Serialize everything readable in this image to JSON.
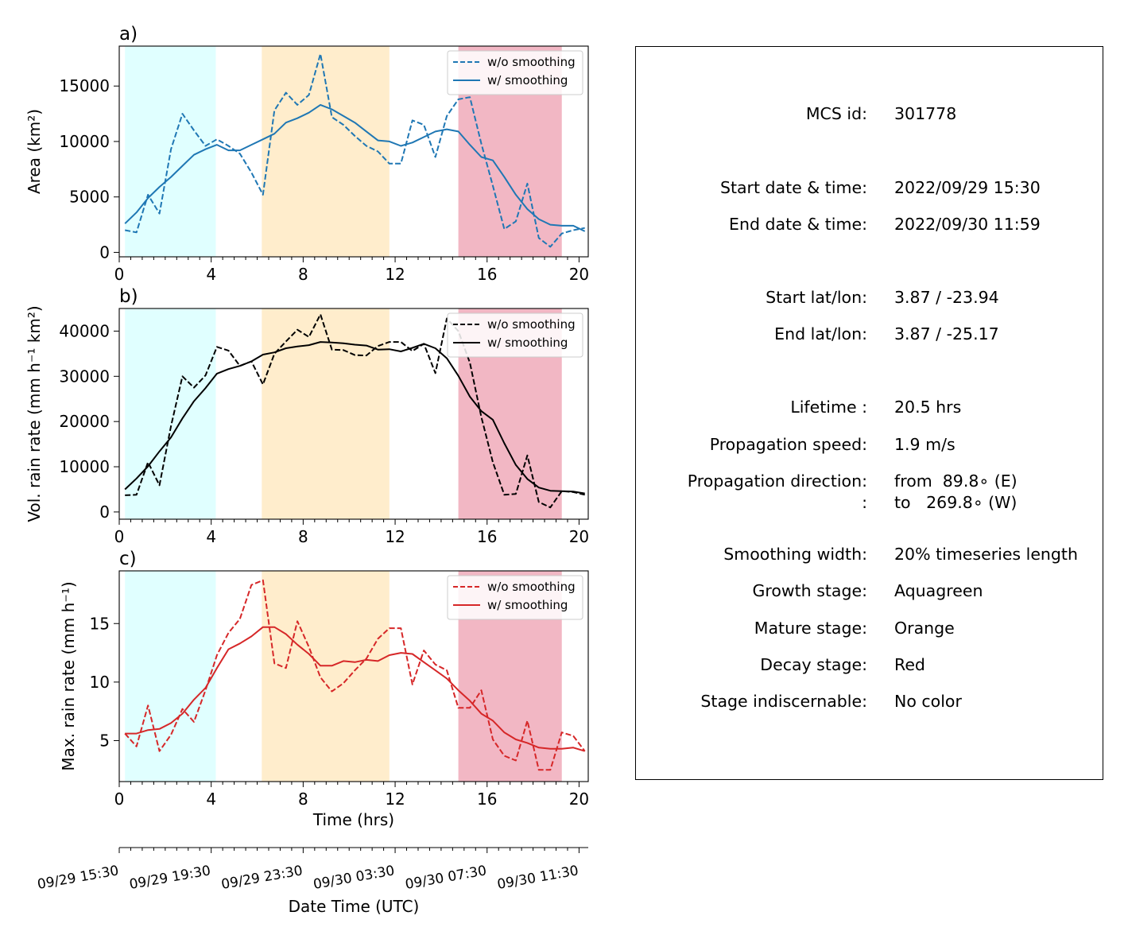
{
  "chart_data": [
    {
      "panel_label": "a)",
      "type": "line",
      "ylabel": "Area  (km²)",
      "ylim": [
        -400,
        18600
      ],
      "yticks": [
        0,
        5000,
        10000,
        15000
      ],
      "xlim": [
        0,
        20.4
      ],
      "xticks": [
        0,
        4,
        8,
        12,
        16,
        20
      ],
      "color": "#1f77b4",
      "legend_placement": "top-right",
      "stages": [
        {
          "name": "Growth stage",
          "x0": 0.25,
          "x1": 4.2,
          "color": "#e0ffff"
        },
        {
          "name": "Mature stage",
          "x0": 6.2,
          "x1": 11.75,
          "color": "#ffedcc"
        },
        {
          "name": "Decay stage",
          "x0": 14.75,
          "x1": 19.25,
          "color": "#f2b7c4"
        }
      ],
      "series": [
        {
          "name": "w/o smoothing",
          "style": "dashed",
          "x": [
            0.25,
            0.75,
            1.25,
            1.75,
            2.25,
            2.75,
            3.25,
            3.75,
            4.25,
            4.75,
            5.25,
            5.75,
            6.25,
            6.75,
            7.25,
            7.75,
            8.25,
            8.75,
            9.25,
            9.75,
            10.25,
            10.75,
            11.25,
            11.75,
            12.25,
            12.75,
            13.25,
            13.75,
            14.25,
            14.75,
            15.25,
            15.75,
            16.25,
            16.75,
            17.25,
            17.75,
            18.25,
            18.75,
            19.25,
            19.75,
            20.25
          ],
          "values": [
            2000,
            1800,
            5200,
            3500,
            9300,
            12500,
            11000,
            9600,
            10200,
            9600,
            8900,
            7200,
            5200,
            12800,
            14400,
            13300,
            14200,
            17900,
            12200,
            11500,
            10500,
            9600,
            9100,
            8000,
            8000,
            11900,
            11500,
            8600,
            12300,
            13800,
            14000,
            9800,
            6000,
            2100,
            2800,
            6200,
            1300,
            500,
            1700,
            2000,
            2200
          ]
        },
        {
          "name": "w/ smoothing",
          "style": "solid",
          "x": [
            0.25,
            0.75,
            1.25,
            1.75,
            2.25,
            2.75,
            3.25,
            3.75,
            4.25,
            4.75,
            5.25,
            5.75,
            6.25,
            6.75,
            7.25,
            7.75,
            8.25,
            8.75,
            9.25,
            9.75,
            10.25,
            10.75,
            11.25,
            11.75,
            12.25,
            12.75,
            13.25,
            13.75,
            14.25,
            14.75,
            15.25,
            15.75,
            16.25,
            16.75,
            17.25,
            17.75,
            18.25,
            18.75,
            19.25,
            19.75,
            20.25
          ],
          "values": [
            2600,
            3600,
            4900,
            5900,
            6800,
            7800,
            8800,
            9300,
            9700,
            9200,
            9200,
            9700,
            10200,
            10700,
            11700,
            12100,
            12600,
            13300,
            12900,
            12300,
            11700,
            10900,
            10100,
            10000,
            9600,
            9900,
            10400,
            10900,
            11100,
            10900,
            9700,
            8600,
            8300,
            6800,
            5200,
            3900,
            3000,
            2500,
            2400,
            2400,
            1900
          ]
        }
      ]
    },
    {
      "panel_label": "b)",
      "type": "line",
      "ylabel": "Vol. rain rate (mm h⁻¹ km²)",
      "ylim": [
        -1600,
        45000
      ],
      "yticks": [
        0,
        10000,
        20000,
        30000,
        40000
      ],
      "xlim": [
        0,
        20.4
      ],
      "xticks": [
        0,
        4,
        8,
        12,
        16,
        20
      ],
      "color": "#000000",
      "legend_placement": "top-right",
      "stages": [
        {
          "name": "Growth stage",
          "x0": 0.25,
          "x1": 4.2,
          "color": "#e0ffff"
        },
        {
          "name": "Mature stage",
          "x0": 6.2,
          "x1": 11.75,
          "color": "#ffedcc"
        },
        {
          "name": "Decay stage",
          "x0": 14.75,
          "x1": 19.25,
          "color": "#f2b7c4"
        }
      ],
      "series": [
        {
          "name": "w/o smoothing",
          "style": "dashed",
          "x": [
            0.25,
            0.75,
            1.25,
            1.75,
            2.25,
            2.75,
            3.25,
            3.75,
            4.25,
            4.75,
            5.25,
            5.75,
            6.25,
            6.75,
            7.25,
            7.75,
            8.25,
            8.75,
            9.25,
            9.75,
            10.25,
            10.75,
            11.25,
            11.75,
            12.25,
            12.75,
            13.25,
            13.75,
            14.25,
            14.75,
            15.25,
            15.75,
            16.25,
            16.75,
            17.25,
            17.75,
            18.25,
            18.75,
            19.25,
            19.75,
            20.25
          ],
          "values": [
            3700,
            3800,
            11000,
            5900,
            19000,
            30000,
            27500,
            30200,
            36500,
            35700,
            32300,
            33300,
            28200,
            35000,
            37700,
            40300,
            38700,
            43700,
            35900,
            35800,
            34700,
            34600,
            36700,
            37600,
            37600,
            35600,
            37200,
            30700,
            42800,
            40000,
            33000,
            21000,
            11000,
            3800,
            4000,
            12500,
            2200,
            1000,
            4600,
            4400,
            3800
          ]
        },
        {
          "name": "w/ smoothing",
          "style": "solid",
          "x": [
            0.25,
            0.75,
            1.25,
            1.75,
            2.25,
            2.75,
            3.25,
            3.75,
            4.25,
            4.75,
            5.25,
            5.75,
            6.25,
            6.75,
            7.25,
            7.75,
            8.25,
            8.75,
            9.25,
            9.75,
            10.25,
            10.75,
            11.25,
            11.75,
            12.25,
            12.75,
            13.25,
            13.75,
            14.25,
            14.75,
            15.25,
            15.75,
            16.25,
            16.75,
            17.25,
            17.75,
            18.25,
            18.75,
            19.25,
            19.75,
            20.25
          ],
          "values": [
            5000,
            7400,
            10100,
            13400,
            16500,
            20700,
            24500,
            27400,
            30600,
            31600,
            32300,
            33300,
            34800,
            35300,
            36200,
            36600,
            36900,
            37600,
            37500,
            37300,
            37000,
            36800,
            35900,
            36000,
            35500,
            36300,
            37200,
            36200,
            34000,
            30100,
            25500,
            22300,
            20400,
            15200,
            10400,
            7300,
            5400,
            4700,
            4600,
            4500,
            4100
          ]
        }
      ]
    },
    {
      "panel_label": "c)",
      "type": "line",
      "ylabel": "Max. rain rate  (mm h⁻¹)",
      "xlabel": "Time (hrs)",
      "ylim": [
        1.5,
        19.5
      ],
      "yticks": [
        5,
        10,
        15
      ],
      "xlim": [
        0,
        20.4
      ],
      "xticks": [
        0,
        4,
        8,
        12,
        16,
        20
      ],
      "color": "#d62728",
      "legend_placement": "top-right",
      "stages": [
        {
          "name": "Growth stage",
          "x0": 0.25,
          "x1": 4.2,
          "color": "#e0ffff"
        },
        {
          "name": "Mature stage",
          "x0": 6.2,
          "x1": 11.75,
          "color": "#ffedcc"
        },
        {
          "name": "Decay stage",
          "x0": 14.75,
          "x1": 19.25,
          "color": "#f2b7c4"
        }
      ],
      "series": [
        {
          "name": "w/o smoothing",
          "style": "dashed",
          "x": [
            0.25,
            0.75,
            1.25,
            1.75,
            2.25,
            2.75,
            3.25,
            3.75,
            4.25,
            4.75,
            5.25,
            5.75,
            6.25,
            6.75,
            7.25,
            7.75,
            8.25,
            8.75,
            9.25,
            9.75,
            10.25,
            10.75,
            11.25,
            11.75,
            12.25,
            12.75,
            13.25,
            13.75,
            14.25,
            14.75,
            15.25,
            15.75,
            16.25,
            16.75,
            17.25,
            17.75,
            18.25,
            18.75,
            19.25,
            19.75,
            20.25
          ],
          "values": [
            5.6,
            4.5,
            8.0,
            4.1,
            5.5,
            7.7,
            6.6,
            9.3,
            12.3,
            14.2,
            15.4,
            18.3,
            18.7,
            11.6,
            11.2,
            15.2,
            13.0,
            10.4,
            9.2,
            9.9,
            11.0,
            12.0,
            13.7,
            14.6,
            14.6,
            9.8,
            12.7,
            11.5,
            11.0,
            7.8,
            7.8,
            9.3,
            5.1,
            3.7,
            3.3,
            6.7,
            2.5,
            2.5,
            5.7,
            5.4,
            4.1
          ]
        },
        {
          "name": "w/ smoothing",
          "style": "solid",
          "x": [
            0.25,
            0.75,
            1.25,
            1.75,
            2.25,
            2.75,
            3.25,
            3.75,
            4.25,
            4.75,
            5.25,
            5.75,
            6.25,
            6.75,
            7.25,
            7.75,
            8.25,
            8.75,
            9.25,
            9.75,
            10.25,
            10.75,
            11.25,
            11.75,
            12.25,
            12.75,
            13.25,
            13.75,
            14.25,
            14.75,
            15.25,
            15.75,
            16.25,
            16.75,
            17.25,
            17.75,
            18.25,
            18.75,
            19.25,
            19.75,
            20.25
          ],
          "values": [
            5.6,
            5.6,
            5.9,
            6.0,
            6.5,
            7.3,
            8.5,
            9.5,
            11.2,
            12.8,
            13.3,
            13.9,
            14.7,
            14.7,
            14.1,
            13.2,
            12.4,
            11.4,
            11.4,
            11.8,
            11.7,
            11.9,
            11.8,
            12.3,
            12.5,
            12.4,
            11.7,
            11.0,
            10.3,
            9.3,
            8.4,
            7.3,
            6.7,
            5.7,
            5.1,
            4.8,
            4.4,
            4.3,
            4.3,
            4.4,
            4.1
          ]
        }
      ]
    }
  ],
  "datetime_axis": {
    "label": "Date Time (UTC)",
    "xlim": [
      0,
      20.4
    ],
    "ticklabels": [
      {
        "x": 0,
        "text": "09/29 15:30"
      },
      {
        "x": 4,
        "text": "09/29 19:30"
      },
      {
        "x": 8,
        "text": "09/29 23:30"
      },
      {
        "x": 12,
        "text": "09/30 03:30"
      },
      {
        "x": 16,
        "text": "09/30 07:30"
      },
      {
        "x": 20,
        "text": "09/30 11:30"
      }
    ]
  },
  "info": {
    "mcs_id_key": "MCS id:",
    "mcs_id": "301778",
    "start_time_key": "Start date & time:",
    "start_time": "2022/09/29 15:30",
    "end_time_key": "End date & time:",
    "end_time": "2022/09/30 11:59",
    "start_latlon_key": "Start lat/lon:",
    "start_latlon": "3.87 / -23.94",
    "end_latlon_key": "End lat/lon:",
    "end_latlon": "3.87 / -25.17",
    "lifetime_key": "Lifetime :",
    "lifetime": "20.5 hrs",
    "speed_key": "Propagation speed:",
    "speed": "1.9 m/s",
    "direction_key": "Propagation direction:",
    "direction_from": "from  89.8∘ (E)",
    "direction_key2": ":",
    "direction_to": "to   269.8∘ (W)",
    "smoothing_key": "Smoothing width:",
    "smoothing": "20% timeseries length",
    "growth_key": "Growth stage:",
    "growth": "Aquagreen",
    "mature_key": "Mature stage:",
    "mature": "Orange",
    "decay_key": "Decay stage:",
    "decay": "Red",
    "indisc_key": "Stage indiscernable:",
    "indisc": "No color"
  }
}
